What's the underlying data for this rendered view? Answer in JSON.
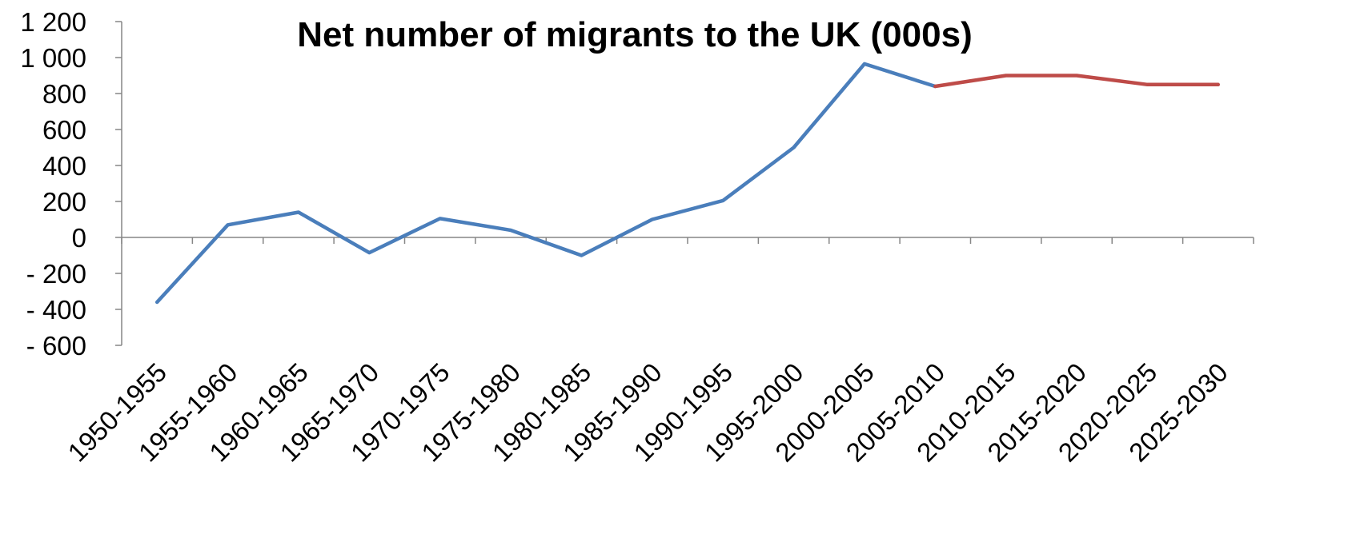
{
  "chart_data": {
    "type": "line",
    "title": "Net number of migrants to the UK (000s)",
    "xlabel": "",
    "ylabel": "",
    "categories": [
      "1950-1955",
      "1955-1960",
      "1960-1965",
      "1965-1970",
      "1970-1975",
      "1975-1980",
      "1980-1985",
      "1985-1990",
      "1990-1995",
      "1995-2000",
      "2000-2005",
      "2005-2010",
      "2010-2015",
      "2015-2020",
      "2020-2025",
      "2025-2030"
    ],
    "ylim": [
      -600,
      1200
    ],
    "yticks": [
      -600,
      -400,
      -200,
      0,
      200,
      400,
      600,
      800,
      1000,
      1200
    ],
    "ytick_labels": [
      "- 600",
      "- 400",
      "- 200",
      "0",
      "200",
      "400",
      "600",
      "800",
      "1 000",
      "1 200"
    ],
    "grid": false,
    "legend": "none",
    "series": [
      {
        "color": "#4a7ebb",
        "values": [
          -360,
          70,
          140,
          -85,
          105,
          40,
          -100,
          100,
          205,
          500,
          965,
          840,
          null,
          null,
          null,
          null
        ]
      },
      {
        "color": "#be4b48",
        "values": [
          null,
          null,
          null,
          null,
          null,
          null,
          null,
          null,
          null,
          null,
          null,
          840,
          900,
          900,
          850,
          850
        ]
      }
    ]
  }
}
